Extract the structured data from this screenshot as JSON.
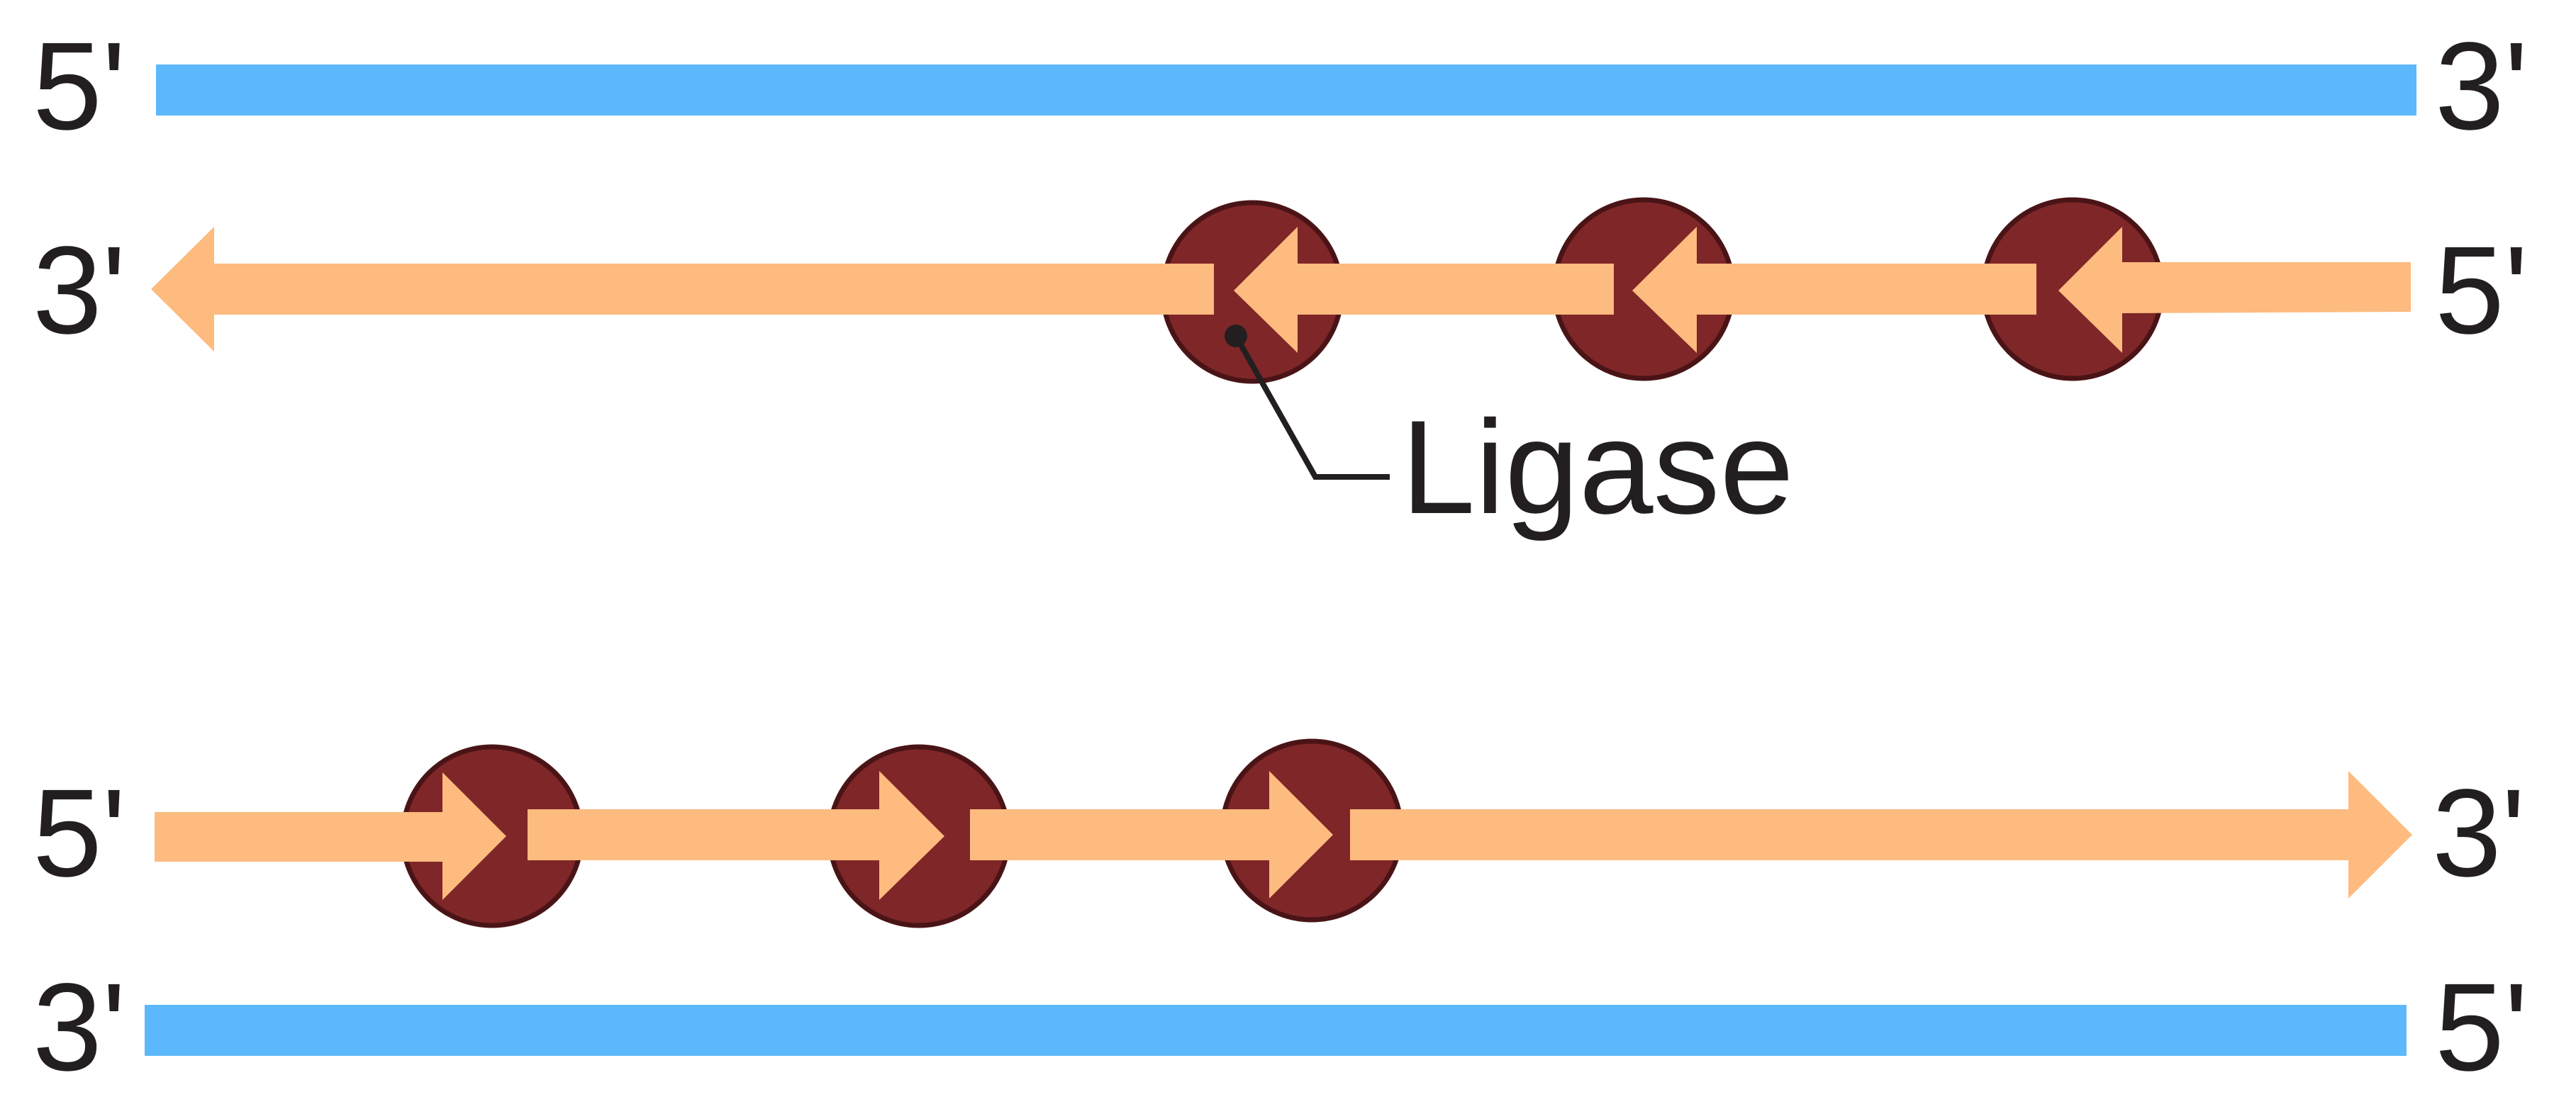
{
  "colors": {
    "template_strand": "#5cb8fb",
    "new_strand": "#fdbb7f",
    "ligase_fill": "#7f2628",
    "ligase_stroke": "#4a1416",
    "text": "#231f20"
  },
  "labels": {
    "five_prime": "5'",
    "three_prime": "3'",
    "ligase": "Ligase"
  },
  "diagram": {
    "top_duplex": {
      "template_strand": {
        "left_end": "5'",
        "right_end": "3'"
      },
      "lagging_strand": {
        "left_end": "3'",
        "right_end": "5'",
        "direction": "leftward",
        "fragments": 4,
        "ligase_count": 3
      }
    },
    "bottom_duplex": {
      "leading_strand": {
        "left_end": "5'",
        "right_end": "3'",
        "direction": "rightward",
        "fragments": 4,
        "ligase_count": 3
      },
      "template_strand": {
        "left_end": "3'",
        "right_end": "5'"
      }
    },
    "callout": {
      "label": "Ligase",
      "points_to": "first ligase on top lagging strand"
    }
  }
}
